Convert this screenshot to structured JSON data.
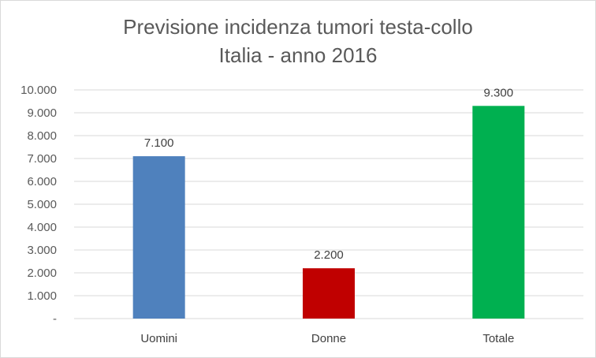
{
  "chart_data": {
    "type": "bar",
    "title_lines": [
      "Previsione incidenza tumori testa-collo",
      "Italia - anno 2016"
    ],
    "categories": [
      "Uomini",
      "Donne",
      "Totale"
    ],
    "values": [
      7100,
      2200,
      9300
    ],
    "data_labels": [
      "7.100",
      "2.200",
      "9.300"
    ],
    "bar_colors": [
      "#4f81bd",
      "#c00000",
      "#00b050"
    ],
    "ylim": [
      0,
      10000
    ],
    "y_ticks": [
      0,
      1000,
      2000,
      3000,
      4000,
      5000,
      6000,
      7000,
      8000,
      9000,
      10000
    ],
    "y_tick_labels": [
      "-",
      "1.000",
      "2.000",
      "3.000",
      "4.000",
      "5.000",
      "6.000",
      "7.000",
      "8.000",
      "9.000",
      "10.000"
    ],
    "grid": true,
    "legend": "none",
    "colors": {
      "gridline": "#d9d9d9",
      "axis": "#d9d9d9",
      "title": "#595959"
    }
  }
}
